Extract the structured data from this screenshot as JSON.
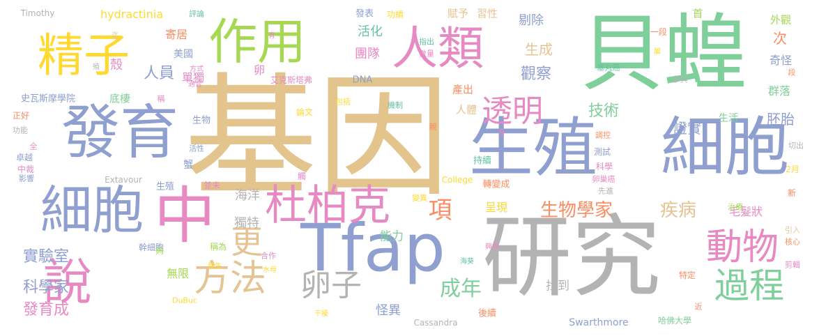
{
  "words": [
    "基因",
    "貝蝗",
    "生殖",
    "細胞",
    "研究",
    "發育",
    "中",
    "Tfap",
    "杜柏克",
    "作用",
    "人類",
    "精子",
    "說",
    "方法",
    "更",
    "動物",
    "過程",
    "卵子",
    "項",
    "透明",
    "生物學家",
    "疾病",
    "成年",
    "實驗室",
    "科學家",
    "發育成",
    "怪異",
    "找到",
    "無限",
    "合作",
    "能力",
    "獨特",
    "海洋",
    "呈現",
    "轉變成",
    "持續",
    "毛髮狀",
    "群落",
    "觀察",
    "技術",
    "證實",
    "胚胎",
    "生活",
    "剔除",
    "生成",
    "賦予",
    "習性",
    "外觀",
    "奇怪",
    "次",
    "段",
    "hydractinia",
    "Timothy",
    "評論",
    "發表",
    "功績",
    "一段",
    "首",
    "寄居",
    "美國",
    "殼",
    "人員",
    "單獨",
    "底棲",
    "活化",
    "團隊",
    "卵",
    "艾克斯塔弗",
    "DNA",
    "史瓦斯摩學院",
    "產出",
    "人體",
    "生物",
    "活性",
    "蟹",
    "生殖",
    "並未",
    "College",
    "變異",
    "Extavour",
    "影響",
    "中裁",
    "卓越",
    "全",
    "功能",
    "正好",
    "稱",
    "適合",
    "方式",
    "殖",
    "迄",
    "育",
    "指出",
    "數量",
    "屬",
    "塞丸癌",
    "參與",
    "論文",
    "包括",
    "機制",
    "親",
    "身",
    "調控",
    "測試",
    "科學",
    "卵巢癌",
    "先進",
    "新",
    "治療",
    "引入",
    "核心",
    "剪輯",
    "特定",
    "2月",
    "切出",
    "幹細胞",
    "稱為",
    "夠",
    "發生",
    "水母",
    "干擾",
    "海葵",
    "興趣",
    "後續",
    "Cassandra",
    "DuBuc",
    "Swarthmore",
    "哈佛大學",
    "近",
    "觸"
  ],
  "colors": {
    "gold": "#e3c48c",
    "green": "#7fcf9a",
    "blue": "#8e9fd0",
    "pink": "#e78ac3",
    "lime": "#a6d854",
    "yellow": "#ffd92f",
    "orange": "#fc8d62",
    "gray": "#b3b3b3",
    "teal": "#66c2a5",
    "tan": "#e5c494"
  }
}
